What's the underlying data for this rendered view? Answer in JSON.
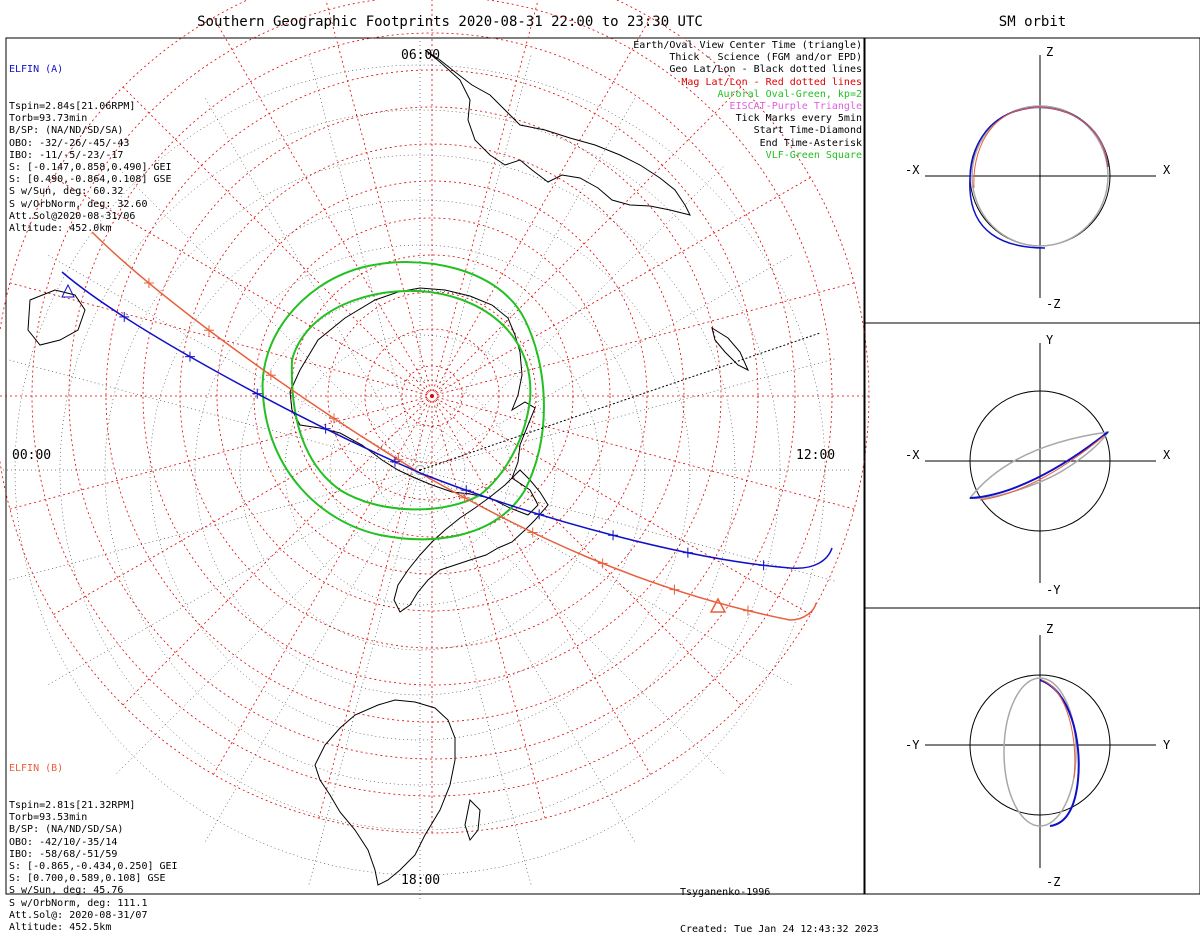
{
  "title": "Southern Geographic Footprints 2020-08-31 22:00 to 23:30 UTC",
  "sm_title": "SM orbit",
  "local_time_labels": {
    "top": "06:00",
    "left": "00:00",
    "right": "12:00",
    "bottom": "18:00"
  },
  "elfin_a": {
    "name": "ELFIN (A)",
    "color": "#1010c8",
    "lines": [
      "Tspin=2.84s[21.06RPM]",
      "Torb=93.73min",
      "B/SP: (NA/ND/SD/SA)",
      "OBO: -32/-26/-45/-43",
      "IBO: -11/-5/-23/-17",
      "S: [-0.147,0.858,0.490] GEI",
      "S: [0.490,-0.864,0.108] GSE",
      "S w/Sun, deg: 60.32",
      "S w/OrbNorm, deg: 32.60",
      "Att.Sol@2020-08-31/06",
      "Altitude: 452.0km"
    ]
  },
  "elfin_b": {
    "name": "ELFIN (B)",
    "color": "#e8603c",
    "lines": [
      "Tspin=2.81s[21.32RPM]",
      "Torb=93.53min",
      "B/SP: (NA/ND/SD/SA)",
      "OBO: -42/10/-35/14",
      "IBO: -58/68/-51/59",
      "S: [-0.865,-0.434,0.250] GEI",
      "S: [0.700,0.589,0.108] GSE",
      "S w/Sun, deg: 45.76",
      "S w/OrbNorm, deg: 111.1",
      "Att.Sol@: 2020-08-31/07",
      "Altitude: 452.5km"
    ]
  },
  "legend": [
    {
      "text": "Earth/Oval View Center Time (triangle)",
      "color": "#000000"
    },
    {
      "text": "Thick - Science (FGM and/or EPD)",
      "color": "#000000"
    },
    {
      "text": "Geo Lat/Lon - Black dotted lines",
      "color": "#000000"
    },
    {
      "text": "Mag Lat/Lon - Red dotted lines",
      "color": "#e00000"
    },
    {
      "text": "Auroral Oval-Green, kp=2",
      "color": "#22c022"
    },
    {
      "text": "EISCAT-Purple Triangle",
      "color": "#e060e0"
    },
    {
      "text": "Tick Marks every 5min",
      "color": "#000000"
    },
    {
      "text": "Start Time-Diamond",
      "color": "#000000"
    },
    {
      "text": "End Time-Asterisk",
      "color": "#000000"
    },
    {
      "text": "VLF-Green Square",
      "color": "#22c022"
    }
  ],
  "credit": {
    "model": "Tsyganenko-1996",
    "created": "Created: Tue Jan 24 12:43:32 2023"
  },
  "sm_panels": [
    {
      "top": "Z",
      "bottom": "-Z",
      "left": "-X",
      "right": "X"
    },
    {
      "top": "Y",
      "bottom": "-Y",
      "left": "-X",
      "right": "X"
    },
    {
      "top": "Z",
      "bottom": "-Z",
      "left": "-Y",
      "right": "Y"
    }
  ],
  "colors": {
    "elfin_a": "#1010c8",
    "elfin_b": "#e8603c",
    "mag_grid": "#e00000",
    "auroral_oval": "#22c022",
    "orbit_gray": "#a8a8a8",
    "land": "#000000"
  }
}
